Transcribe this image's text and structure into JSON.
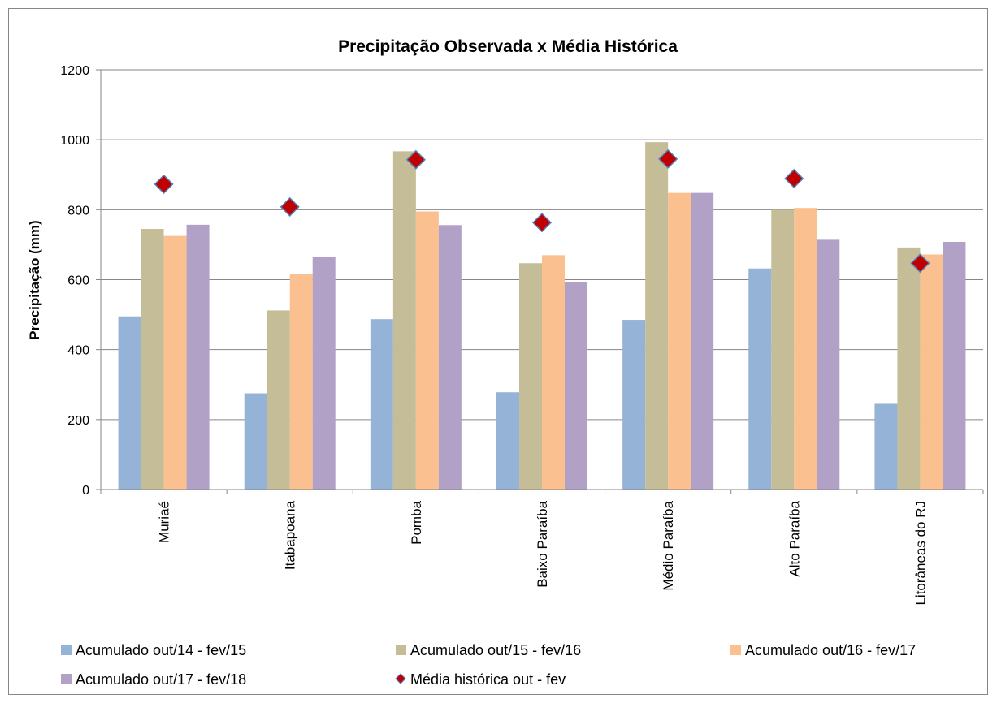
{
  "chart_data": {
    "type": "bar",
    "title": "Precipitação Observada x Média Histórica",
    "ylabel": "Precipitação (mm)",
    "xlabel": "",
    "ylim": [
      0,
      1200
    ],
    "yticks": [
      0,
      200,
      400,
      600,
      800,
      1000,
      1200
    ],
    "grid": true,
    "legend_position": "bottom",
    "categories": [
      "Muriaé",
      "Itabapoana",
      "Pomba",
      "Baixo Paraíba",
      "Médio Paraíba",
      "Alto Paraíba",
      "Litorâneas do RJ"
    ],
    "series": [
      {
        "name": "Acumulado out/14 - fev/15",
        "type": "bar",
        "color": "#95b3d7",
        "values": [
          495,
          275,
          487,
          278,
          485,
          632,
          245
        ]
      },
      {
        "name": "Acumulado out/15 - fev/16",
        "type": "bar",
        "color": "#c4bd97",
        "values": [
          745,
          512,
          967,
          647,
          993,
          800,
          692
        ]
      },
      {
        "name": "Acumulado out/16 - fev/17",
        "type": "bar",
        "color": "#fac090",
        "values": [
          725,
          615,
          795,
          670,
          848,
          805,
          672
        ]
      },
      {
        "name": "Acumulado out/17 - fev/18",
        "type": "bar",
        "color": "#b2a1c7",
        "values": [
          757,
          665,
          756,
          593,
          848,
          714,
          708
        ]
      },
      {
        "name": "Média histórica out - fev",
        "type": "marker",
        "color": "#c00000",
        "edge_color": "#4f81bd",
        "values": [
          873,
          808,
          943,
          763,
          945,
          889,
          647
        ]
      }
    ]
  }
}
